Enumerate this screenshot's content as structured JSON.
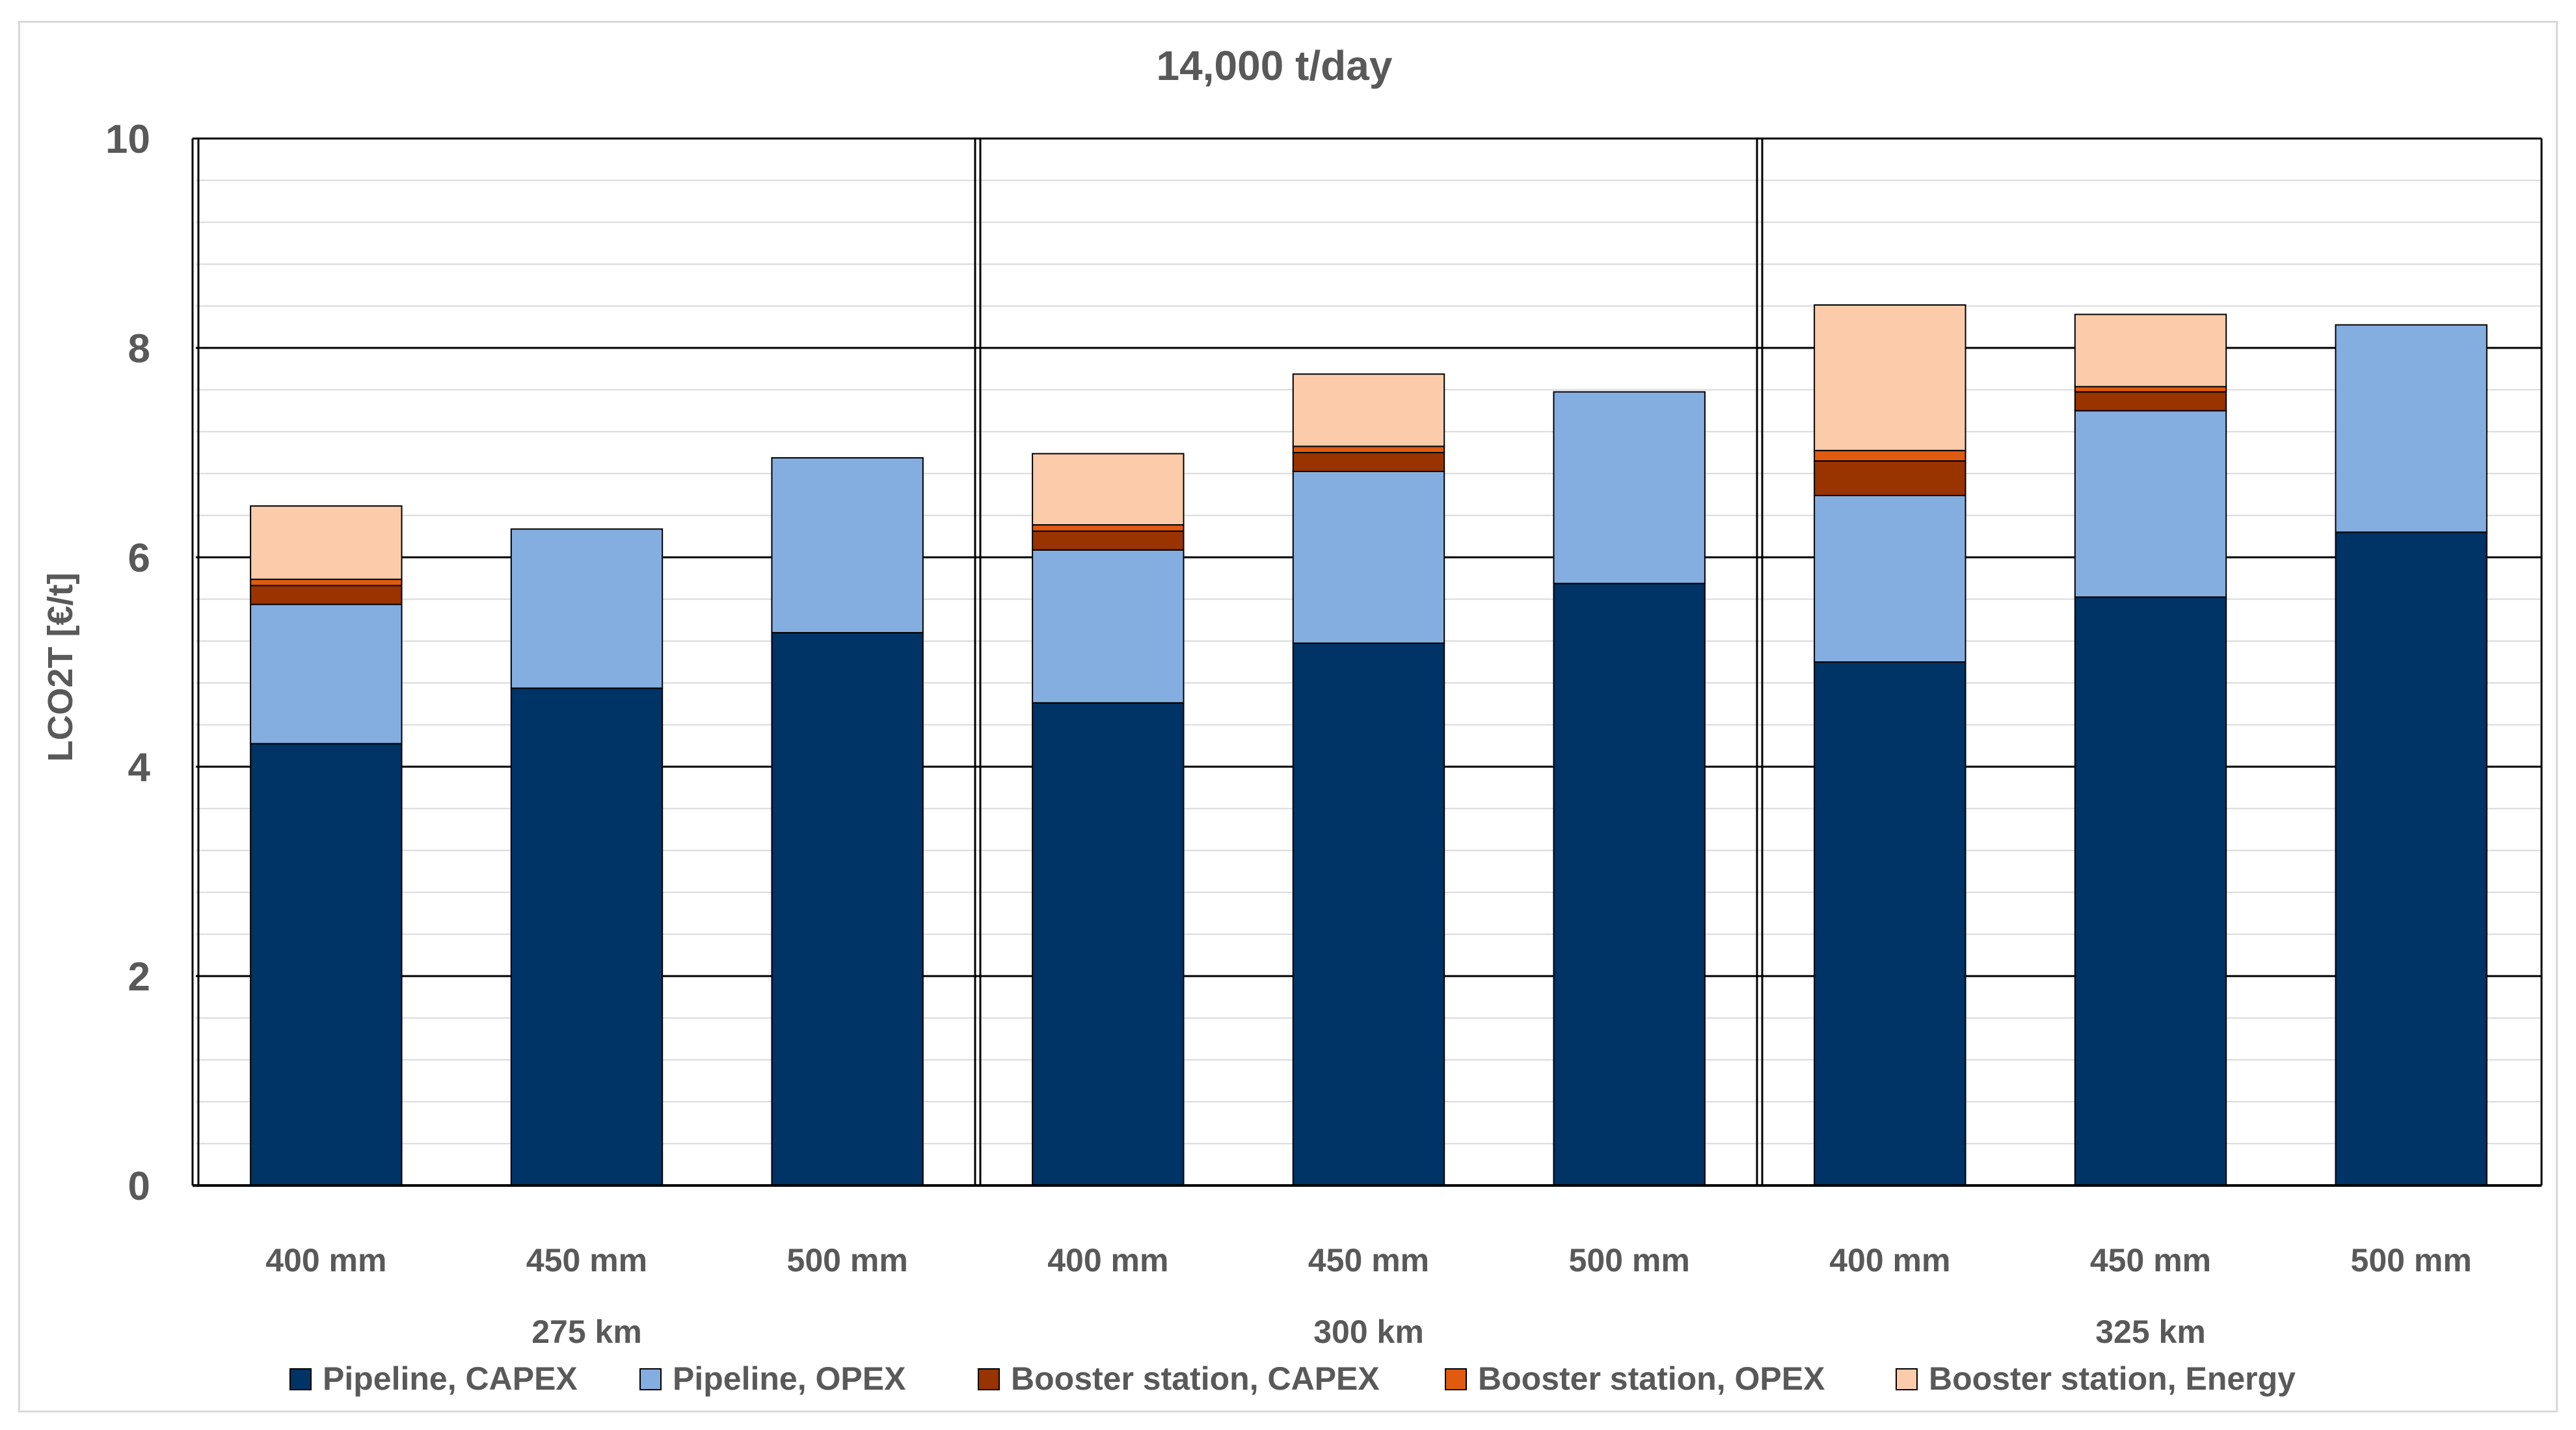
{
  "chart_data": {
    "type": "bar",
    "stacked": true,
    "title": "14,000 t/day",
    "xlabel": "",
    "ylabel": "LCO2T [€/t]",
    "ylim": [
      0,
      10
    ],
    "yticks": [
      0,
      2,
      4,
      6,
      8,
      10
    ],
    "grid": true,
    "legend_position": "bottom",
    "groups": [
      "275 km",
      "300 km",
      "325 km"
    ],
    "categories": [
      "400 mm",
      "450 mm",
      "500 mm",
      "400 mm",
      "450 mm",
      "500 mm",
      "400 mm",
      "450 mm",
      "500 mm"
    ],
    "series": [
      {
        "name": "Pipeline, CAPEX",
        "color": "#003366",
        "values": [
          4.22,
          4.75,
          5.28,
          4.61,
          5.18,
          5.75,
          5.0,
          5.62,
          6.24
        ]
      },
      {
        "name": "Pipeline, OPEX",
        "color": "#85aee0",
        "values": [
          1.33,
          1.52,
          1.67,
          1.46,
          1.64,
          1.83,
          1.59,
          1.78,
          1.98
        ]
      },
      {
        "name": "Booster station, CAPEX",
        "color": "#993300",
        "values": [
          0.18,
          0,
          0,
          0.18,
          0.18,
          0,
          0.33,
          0.18,
          0
        ]
      },
      {
        "name": "Booster station, OPEX",
        "color": "#e05a10",
        "values": [
          0.06,
          0,
          0,
          0.06,
          0.06,
          0,
          0.1,
          0.05,
          0
        ]
      },
      {
        "name": "Booster station, Energy",
        "color": "#fcccaa",
        "values": [
          0.7,
          0,
          0,
          0.68,
          0.69,
          0,
          1.39,
          0.69,
          0
        ]
      }
    ]
  }
}
